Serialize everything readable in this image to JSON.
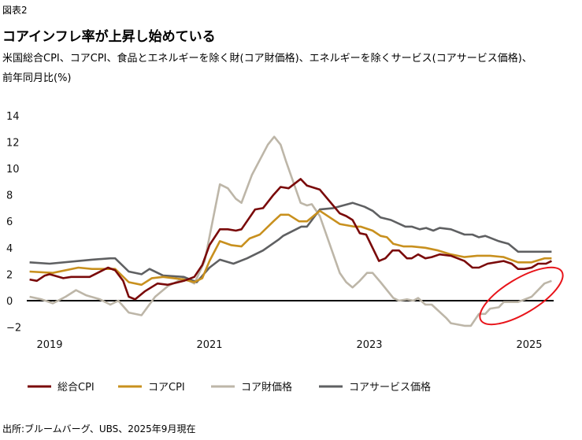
{
  "header": {
    "figure_label": "図表2",
    "title": "コアインフレ率が上昇し始めている",
    "subtitle_line1": "米国総合CPI、コアCPI、食品とエネルギーを除く財(コア財価格)、エネルギーを除くサービス(コアサービス価格)、",
    "subtitle_line2": "前年同月比(%)"
  },
  "source": "出所:ブルームバーグ、UBS、2025年9月現在",
  "chart_data": {
    "type": "line",
    "title": "コアインフレ率が上昇し始めている",
    "xlabel": "",
    "ylabel": "前年同月比(%)",
    "xlim": [
      2018.75,
      2025.3
    ],
    "ylim": [
      -2,
      14
    ],
    "yticks": [
      14,
      12,
      10,
      8,
      6,
      4,
      2,
      0,
      -2
    ],
    "ytick_labels": [
      "14",
      "12",
      "10",
      "8",
      "6",
      "4",
      "2",
      "0",
      "−2"
    ],
    "xticks": [
      2019,
      2021,
      2023,
      2025
    ],
    "xtick_labels": [
      "2019",
      "2021",
      "2023",
      "2025"
    ],
    "grid": false,
    "legend_position": "bottom",
    "annotation": "red ellipse highlighting the recent rise in core goods prices (2024–2025)",
    "series": [
      {
        "name": "総合CPI",
        "color": "#7a0a0a",
        "x": [
          2018.75,
          2018.84,
          2018.94,
          2019.0,
          2019.17,
          2019.27,
          2019.5,
          2019.73,
          2019.82,
          2019.92,
          2019.99,
          2020.07,
          2020.19,
          2020.35,
          2020.48,
          2020.68,
          2020.81,
          2020.91,
          2021.0,
          2021.13,
          2021.23,
          2021.33,
          2021.4,
          2021.57,
          2021.67,
          2021.8,
          2021.89,
          2021.99,
          2022.14,
          2022.22,
          2022.38,
          2022.63,
          2022.71,
          2022.79,
          2022.88,
          2022.96,
          2023.12,
          2023.2,
          2023.29,
          2023.37,
          2023.47,
          2023.53,
          2023.61,
          2023.7,
          2023.78,
          2023.88,
          2024.02,
          2024.19,
          2024.29,
          2024.37,
          2024.48,
          2024.68,
          2024.78,
          2024.86,
          2024.94,
          2025.03,
          2025.11,
          2025.21,
          2025.28
        ],
        "values": [
          1.6,
          1.5,
          1.9,
          2.0,
          1.7,
          1.8,
          1.8,
          2.5,
          2.3,
          1.5,
          0.3,
          0.1,
          0.7,
          1.3,
          1.2,
          1.5,
          1.8,
          2.7,
          4.2,
          5.4,
          5.4,
          5.3,
          5.4,
          6.9,
          7.0,
          8.0,
          8.6,
          8.5,
          9.2,
          8.7,
          8.4,
          6.6,
          6.4,
          6.1,
          5.1,
          5.0,
          3.0,
          3.2,
          3.8,
          3.8,
          3.2,
          3.2,
          3.5,
          3.2,
          3.3,
          3.5,
          3.4,
          3.0,
          2.5,
          2.5,
          2.8,
          3.0,
          2.8,
          2.4,
          2.4,
          2.5,
          2.8,
          2.8,
          3.0
        ]
      },
      {
        "name": "コアCPI",
        "color": "#c8901e",
        "x": [
          2018.75,
          2019.04,
          2019.36,
          2019.53,
          2019.82,
          2019.99,
          2020.15,
          2020.28,
          2020.42,
          2020.68,
          2020.81,
          2020.91,
          2021.0,
          2021.13,
          2021.27,
          2021.4,
          2021.5,
          2021.63,
          2021.8,
          2021.89,
          2021.99,
          2022.12,
          2022.22,
          2022.38,
          2022.63,
          2022.81,
          2022.89,
          2023.04,
          2023.14,
          2023.22,
          2023.3,
          2023.43,
          2023.53,
          2023.7,
          2023.86,
          2024.02,
          2024.19,
          2024.35,
          2024.51,
          2024.68,
          2024.86,
          2025.03,
          2025.19,
          2025.28
        ],
        "values": [
          2.2,
          2.1,
          2.5,
          2.4,
          2.4,
          1.4,
          1.2,
          1.7,
          1.8,
          1.6,
          1.4,
          1.7,
          3.0,
          4.5,
          4.2,
          4.1,
          4.7,
          5.0,
          6.0,
          6.5,
          6.5,
          6.0,
          6.0,
          6.8,
          5.8,
          5.6,
          5.6,
          5.3,
          4.9,
          4.8,
          4.3,
          4.1,
          4.1,
          4.0,
          3.8,
          3.5,
          3.3,
          3.4,
          3.4,
          3.3,
          2.9,
          2.9,
          3.2,
          3.2
        ]
      },
      {
        "name": "コア財価格",
        "color": "#bdb6a8",
        "x": [
          2018.75,
          2018.9,
          2019.04,
          2019.2,
          2019.33,
          2019.46,
          2019.63,
          2019.76,
          2019.86,
          2019.99,
          2020.15,
          2020.32,
          2020.48,
          2020.68,
          2020.81,
          2020.94,
          2021.13,
          2021.23,
          2021.33,
          2021.4,
          2021.53,
          2021.73,
          2021.81,
          2021.89,
          2021.96,
          2022.14,
          2022.22,
          2022.28,
          2022.38,
          2022.63,
          2022.71,
          2022.79,
          2022.88,
          2022.97,
          2023.04,
          2023.14,
          2023.3,
          2023.37,
          2023.47,
          2023.55,
          2023.61,
          2023.7,
          2023.78,
          2023.96,
          2024.02,
          2024.19,
          2024.27,
          2024.37,
          2024.45,
          2024.51,
          2024.62,
          2024.68,
          2024.86,
          2025.03,
          2025.19,
          2025.28
        ],
        "values": [
          0.3,
          0.1,
          -0.2,
          0.3,
          0.8,
          0.4,
          0.1,
          -0.3,
          0.0,
          -0.9,
          -1.1,
          0.3,
          1.1,
          1.7,
          1.3,
          3.0,
          8.8,
          8.5,
          7.7,
          7.4,
          9.5,
          11.8,
          12.4,
          11.8,
          10.5,
          7.4,
          7.2,
          7.3,
          6.4,
          2.1,
          1.4,
          1.0,
          1.5,
          2.1,
          2.1,
          1.4,
          0.2,
          0.0,
          0.1,
          0.0,
          0.2,
          -0.3,
          -0.3,
          -1.3,
          -1.7,
          -1.9,
          -1.9,
          -1.0,
          -1.0,
          -0.6,
          -0.5,
          -0.1,
          -0.1,
          0.3,
          1.3,
          1.5
        ]
      },
      {
        "name": "コアサービス価格",
        "color": "#5f6062",
        "x": [
          2018.75,
          2019.0,
          2019.36,
          2019.53,
          2019.76,
          2019.82,
          2019.99,
          2020.15,
          2020.25,
          2020.42,
          2020.68,
          2020.84,
          2021.0,
          2021.13,
          2021.3,
          2021.47,
          2021.67,
          2021.86,
          2021.92,
          2022.15,
          2022.22,
          2022.38,
          2022.55,
          2022.79,
          2022.94,
          2023.04,
          2023.14,
          2023.27,
          2023.45,
          2023.53,
          2023.63,
          2023.71,
          2023.8,
          2023.88,
          2024.02,
          2024.19,
          2024.29,
          2024.37,
          2024.45,
          2024.62,
          2024.74,
          2024.86,
          2024.94,
          2025.28
        ],
        "values": [
          2.9,
          2.8,
          3.0,
          3.1,
          3.2,
          3.2,
          2.2,
          2.0,
          2.4,
          1.9,
          1.8,
          1.4,
          2.5,
          3.1,
          2.8,
          3.2,
          3.8,
          4.6,
          4.9,
          5.6,
          5.6,
          6.9,
          7.0,
          7.4,
          7.1,
          6.8,
          6.3,
          6.1,
          5.6,
          5.6,
          5.4,
          5.5,
          5.3,
          5.5,
          5.4,
          5.0,
          5.0,
          4.8,
          4.9,
          4.5,
          4.3,
          3.7,
          3.7,
          3.7
        ]
      }
    ]
  }
}
